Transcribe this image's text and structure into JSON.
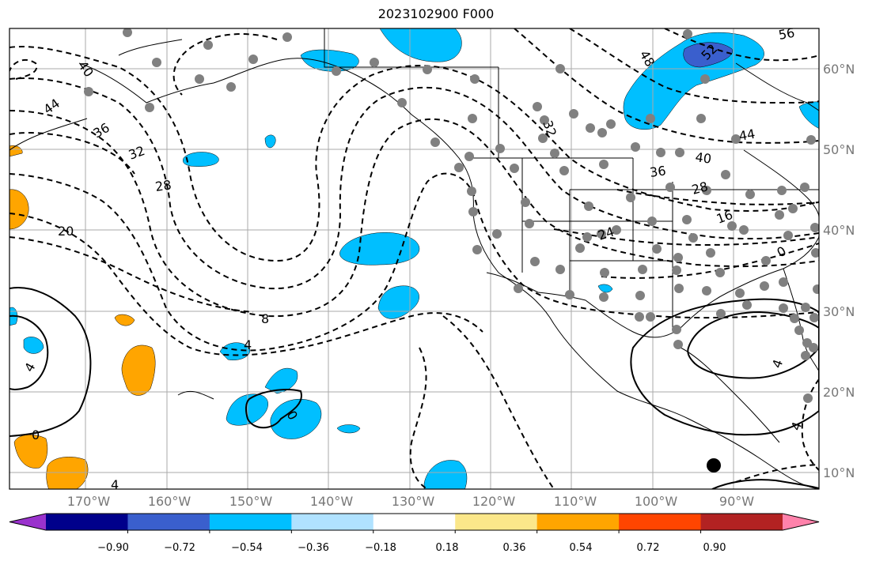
{
  "title": "2023102900 F000",
  "lat_labels": [
    "60°N",
    "50°N",
    "40°N",
    "30°N",
    "20°N",
    "10°N"
  ],
  "lon_labels": [
    "170°W",
    "160°W",
    "150°W",
    "140°W",
    "130°W",
    "120°W",
    "110°W",
    "100°W",
    "90°W"
  ],
  "colorbar": {
    "colors": [
      "#9a32cd",
      "#00008b",
      "#3a5fcd",
      "#00bfff",
      "#b0e2ff",
      "#ffffff",
      "#fbe78a",
      "#ffa500",
      "#ff4500",
      "#b22222",
      "#ff82ab"
    ],
    "tick_labels": [
      "−0.90",
      "−0.72",
      "−0.54",
      "−0.36",
      "−0.18",
      "0.18",
      "0.36",
      "0.54",
      "0.72",
      "0.90"
    ]
  },
  "contour_labels": [
    "40",
    "44",
    "36",
    "32",
    "28",
    "20",
    "8",
    "4",
    "4",
    "0",
    "0",
    "4",
    "24",
    "16",
    "36",
    "40",
    "44",
    "48",
    "52",
    "56",
    "32",
    "28",
    "0",
    "4",
    "4"
  ],
  "station_marker": "filled-circle"
}
